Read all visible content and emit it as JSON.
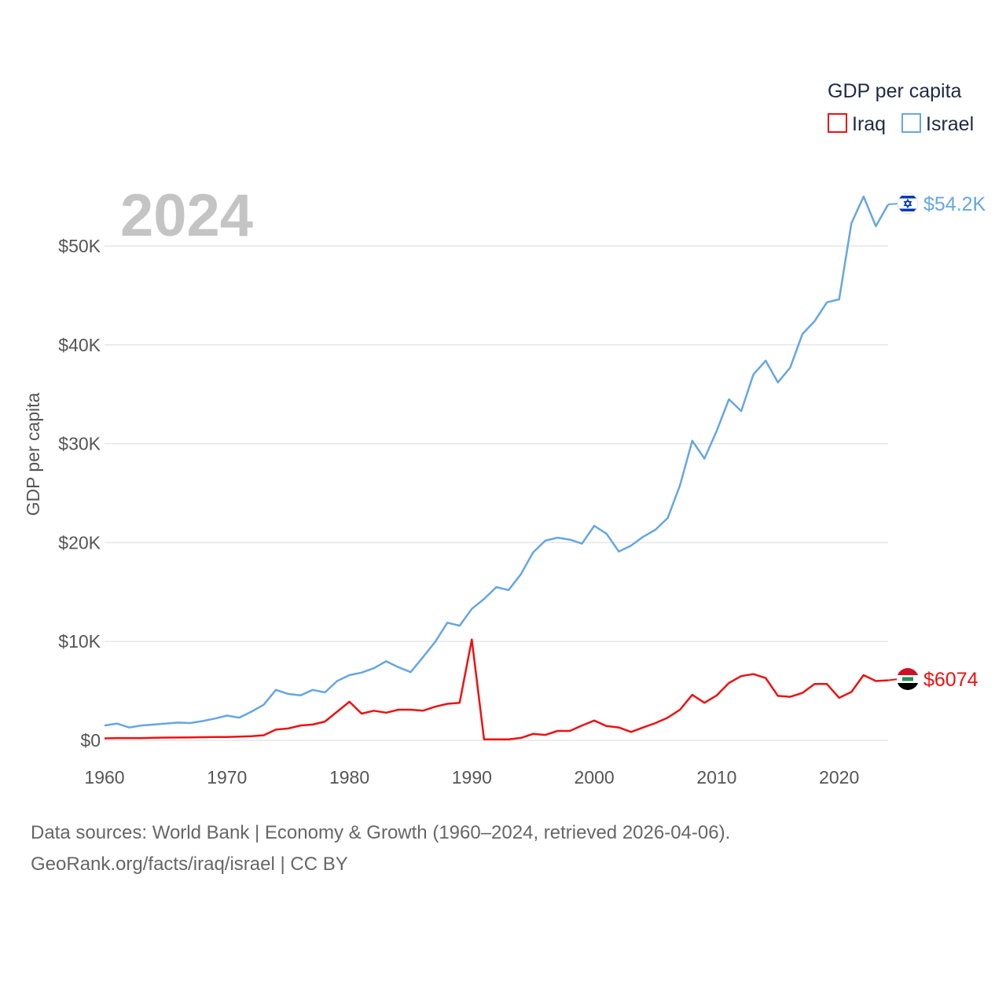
{
  "chart_data": {
    "type": "line",
    "year_label": "2024",
    "ylabel": "GDP per capita",
    "xlim": [
      1960,
      2024
    ],
    "ylim": [
      0,
      55000
    ],
    "x_ticks": [
      1960,
      1970,
      1980,
      1990,
      2000,
      2010,
      2020
    ],
    "x_tick_labels": [
      "1960",
      "1970",
      "1980",
      "1990",
      "2000",
      "2010",
      "2020"
    ],
    "y_ticks": [
      0,
      10000,
      20000,
      30000,
      40000,
      50000
    ],
    "y_tick_labels": [
      "$0",
      "$10K",
      "$20K",
      "$30K",
      "$40K",
      "$50K"
    ],
    "grid": true,
    "legend": {
      "title": "GDP per capita",
      "position": "top-right",
      "entries": [
        {
          "name": "Iraq",
          "color": "#ee1111"
        },
        {
          "name": "Israel",
          "color": "#66a6e3"
        }
      ]
    },
    "x": [
      1960,
      1961,
      1962,
      1963,
      1964,
      1965,
      1966,
      1967,
      1968,
      1969,
      1970,
      1971,
      1972,
      1973,
      1974,
      1975,
      1976,
      1977,
      1978,
      1979,
      1980,
      1981,
      1982,
      1983,
      1984,
      1985,
      1986,
      1987,
      1988,
      1989,
      1990,
      1991,
      1992,
      1993,
      1994,
      1995,
      1996,
      1997,
      1998,
      1999,
      2000,
      2001,
      2002,
      2003,
      2004,
      2005,
      2006,
      2007,
      2008,
      2009,
      2010,
      2011,
      2012,
      2013,
      2014,
      2015,
      2016,
      2017,
      2018,
      2019,
      2020,
      2021,
      2022,
      2023,
      2024
    ],
    "series": [
      {
        "name": "Israel",
        "color": "#66a6e3",
        "end_label": "$54.2K",
        "flag_icon": "israel-flag-icon",
        "values": [
          1500,
          1700,
          1300,
          1500,
          1600,
          1700,
          1800,
          1750,
          1950,
          2200,
          2500,
          2300,
          2900,
          3600,
          5100,
          4700,
          4550,
          5100,
          4850,
          6000,
          6600,
          6850,
          7300,
          8000,
          7400,
          6900,
          8400,
          9950,
          11900,
          11600,
          13300,
          14300,
          15500,
          15200,
          16800,
          19000,
          20200,
          20500,
          20300,
          19900,
          21700,
          20900,
          19100,
          19700,
          20600,
          21300,
          22500,
          25800,
          30300,
          28500,
          31300,
          34500,
          33300,
          37000,
          38400,
          36200,
          37700,
          41100,
          42400,
          44300,
          44600,
          52300,
          55000,
          52000,
          54200
        ]
      },
      {
        "name": "Iraq",
        "color": "#ee1111",
        "end_label": "$6074",
        "flag_icon": "iraq-flag-icon",
        "values": [
          200,
          230,
          230,
          230,
          260,
          280,
          290,
          300,
          320,
          330,
          340,
          380,
          420,
          520,
          1100,
          1200,
          1500,
          1600,
          1900,
          2900,
          3900,
          2700,
          3000,
          2800,
          3100,
          3100,
          3000,
          3400,
          3700,
          3800,
          10200,
          100,
          100,
          100,
          250,
          650,
          550,
          950,
          950,
          1500,
          2000,
          1450,
          1300,
          850,
          1300,
          1750,
          2300,
          3100,
          4600,
          3800,
          4550,
          5800,
          6500,
          6700,
          6300,
          4500,
          4400,
          4800,
          5700,
          5700,
          4300,
          4900,
          6600,
          6000,
          6074
        ]
      }
    ]
  },
  "footer": {
    "line1": "Data sources: World Bank | Economy & Growth (1960–2024, retrieved 2026-04-06).",
    "line2": "GeoRank.org/facts/iraq/israel | CC BY"
  }
}
